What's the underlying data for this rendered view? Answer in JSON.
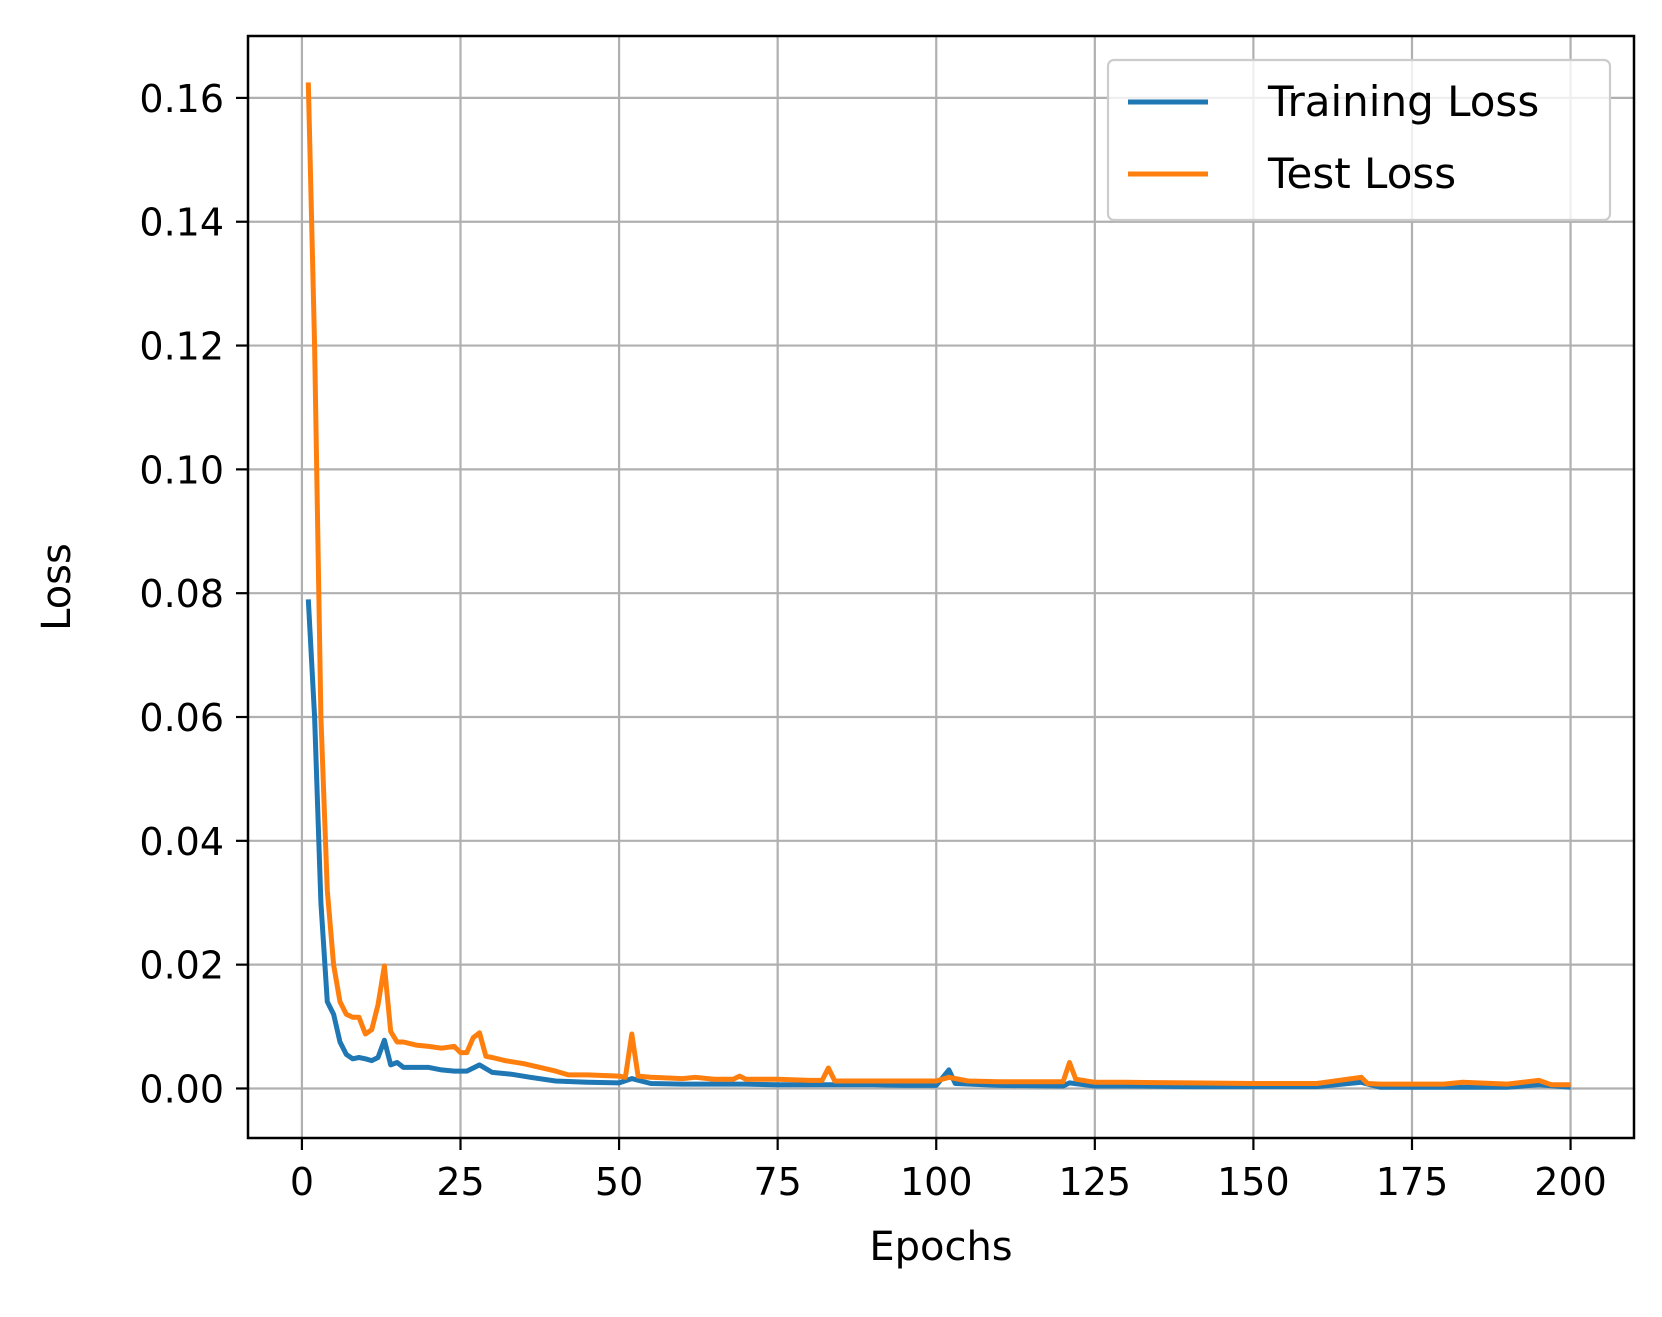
{
  "chart_data": {
    "type": "line",
    "title": "",
    "xlabel": "Epochs",
    "ylabel": "Loss",
    "xlim": [
      -8.5,
      210
    ],
    "ylim": [
      -0.008,
      0.17
    ],
    "xticks": [
      0,
      25,
      50,
      75,
      100,
      125,
      150,
      175,
      200
    ],
    "xtick_labels": [
      "0",
      "25",
      "50",
      "75",
      "100",
      "125",
      "150",
      "175",
      "200"
    ],
    "yticks": [
      0.0,
      0.02,
      0.04,
      0.06,
      0.08,
      0.1,
      0.12,
      0.14,
      0.16
    ],
    "ytick_labels": [
      "0.00",
      "0.02",
      "0.04",
      "0.06",
      "0.08",
      "0.10",
      "0.12",
      "0.14",
      "0.16"
    ],
    "grid": true,
    "legend_position": "top-right",
    "series": [
      {
        "name": "Training Loss",
        "color": "#1f77b4",
        "x": [
          1,
          2,
          3,
          4,
          5,
          6,
          7,
          8,
          9,
          10,
          11,
          12,
          13,
          14,
          15,
          16,
          18,
          20,
          22,
          24,
          26,
          27,
          28,
          30,
          33,
          36,
          40,
          45,
          50,
          52,
          55,
          60,
          65,
          70,
          75,
          80,
          85,
          90,
          95,
          100,
          102,
          103,
          110,
          120,
          121,
          125,
          130,
          140,
          150,
          160,
          167,
          170,
          180,
          190,
          195,
          200
        ],
        "y": [
          0.079,
          0.06,
          0.03,
          0.014,
          0.012,
          0.0075,
          0.0055,
          0.0048,
          0.005,
          0.0048,
          0.0045,
          0.005,
          0.0078,
          0.0038,
          0.0042,
          0.0034,
          0.0034,
          0.0034,
          0.003,
          0.0028,
          0.0028,
          0.0033,
          0.0038,
          0.0026,
          0.0023,
          0.0018,
          0.0012,
          0.001,
          0.0009,
          0.0016,
          0.0008,
          0.0007,
          0.0007,
          0.0007,
          0.0006,
          0.0006,
          0.0006,
          0.0006,
          0.0005,
          0.0005,
          0.003,
          0.0008,
          0.0005,
          0.0004,
          0.0009,
          0.0004,
          0.0004,
          0.0003,
          0.0003,
          0.0003,
          0.001,
          0.0002,
          0.0002,
          0.0002,
          0.0006,
          0.0002
        ]
      },
      {
        "name": "Test Loss",
        "color": "#ff7f0e",
        "x": [
          1,
          2,
          3,
          4,
          5,
          6,
          7,
          8,
          9,
          10,
          11,
          12,
          13,
          14,
          15,
          16,
          18,
          20,
          22,
          24,
          25,
          26,
          27,
          28,
          29,
          30,
          32,
          35,
          40,
          42,
          45,
          50,
          51,
          52,
          53,
          55,
          60,
          62,
          65,
          68,
          69,
          70,
          72,
          75,
          80,
          82,
          83,
          84,
          90,
          91,
          100,
          102,
          105,
          110,
          120,
          121,
          122,
          125,
          130,
          140,
          150,
          160,
          167,
          168,
          170,
          180,
          183,
          190,
          195,
          197,
          200
        ],
        "y": [
          0.1625,
          0.12,
          0.06,
          0.032,
          0.02,
          0.014,
          0.012,
          0.0115,
          0.0115,
          0.0088,
          0.0095,
          0.0135,
          0.0198,
          0.0092,
          0.0075,
          0.0075,
          0.007,
          0.0068,
          0.0065,
          0.0068,
          0.0058,
          0.0058,
          0.0082,
          0.009,
          0.0052,
          0.005,
          0.0045,
          0.004,
          0.0028,
          0.0022,
          0.0022,
          0.002,
          0.0018,
          0.0088,
          0.002,
          0.0018,
          0.0016,
          0.0018,
          0.0015,
          0.0015,
          0.002,
          0.0015,
          0.0015,
          0.0015,
          0.0013,
          0.0013,
          0.0033,
          0.0012,
          0.0012,
          0.0012,
          0.0012,
          0.0018,
          0.0012,
          0.0011,
          0.0011,
          0.0042,
          0.0015,
          0.001,
          0.001,
          0.0009,
          0.0008,
          0.0008,
          0.0018,
          0.0008,
          0.0007,
          0.0007,
          0.001,
          0.0007,
          0.0013,
          0.0006,
          0.0006
        ]
      }
    ]
  }
}
